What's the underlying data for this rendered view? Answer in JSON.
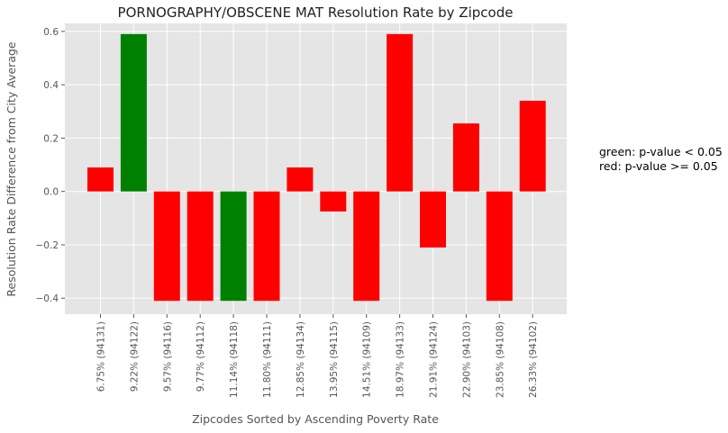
{
  "chart_data": {
    "type": "bar",
    "title": "PORNOGRAPHY/OBSCENE MAT Resolution Rate by Zipcode",
    "xlabel": "Zipcodes Sorted by Ascending Poverty Rate",
    "ylabel": "Resolution Rate Difference from City Average",
    "ylim": [
      -0.46,
      0.63
    ],
    "yticks": [
      -0.4,
      -0.2,
      0.0,
      0.2,
      0.4,
      0.6
    ],
    "ytick_labels": [
      "−0.4",
      "−0.2",
      "0.0",
      "0.2",
      "0.4",
      "0.6"
    ],
    "grid": true,
    "categories": [
      "6.75%  (94131)",
      "9.22%  (94122)",
      "9.57%  (94116)",
      "9.77%  (94112)",
      "11.14%  (94118)",
      "11.80%  (94111)",
      "12.85%  (94134)",
      "13.95%  (94115)",
      "14.51%  (94109)",
      "18.97%  (94133)",
      "21.91%  (94124)",
      "22.90%  (94103)",
      "23.85%  (94108)",
      "26.33%  (94102)"
    ],
    "values": [
      0.09,
      0.59,
      -0.41,
      -0.41,
      -0.41,
      -0.41,
      0.09,
      -0.075,
      -0.41,
      0.59,
      -0.21,
      0.255,
      -0.41,
      0.34
    ],
    "significant": [
      false,
      true,
      false,
      false,
      true,
      false,
      false,
      false,
      false,
      false,
      false,
      false,
      false,
      false
    ],
    "colors": {
      "significant": "#008000",
      "not_significant": "#ff0000",
      "plot_bg": "#e5e5e5",
      "grid": "#ffffff"
    }
  },
  "legend_note": {
    "green": "green: p-value < 0.05",
    "red": "red: p-value >= 0.05"
  }
}
